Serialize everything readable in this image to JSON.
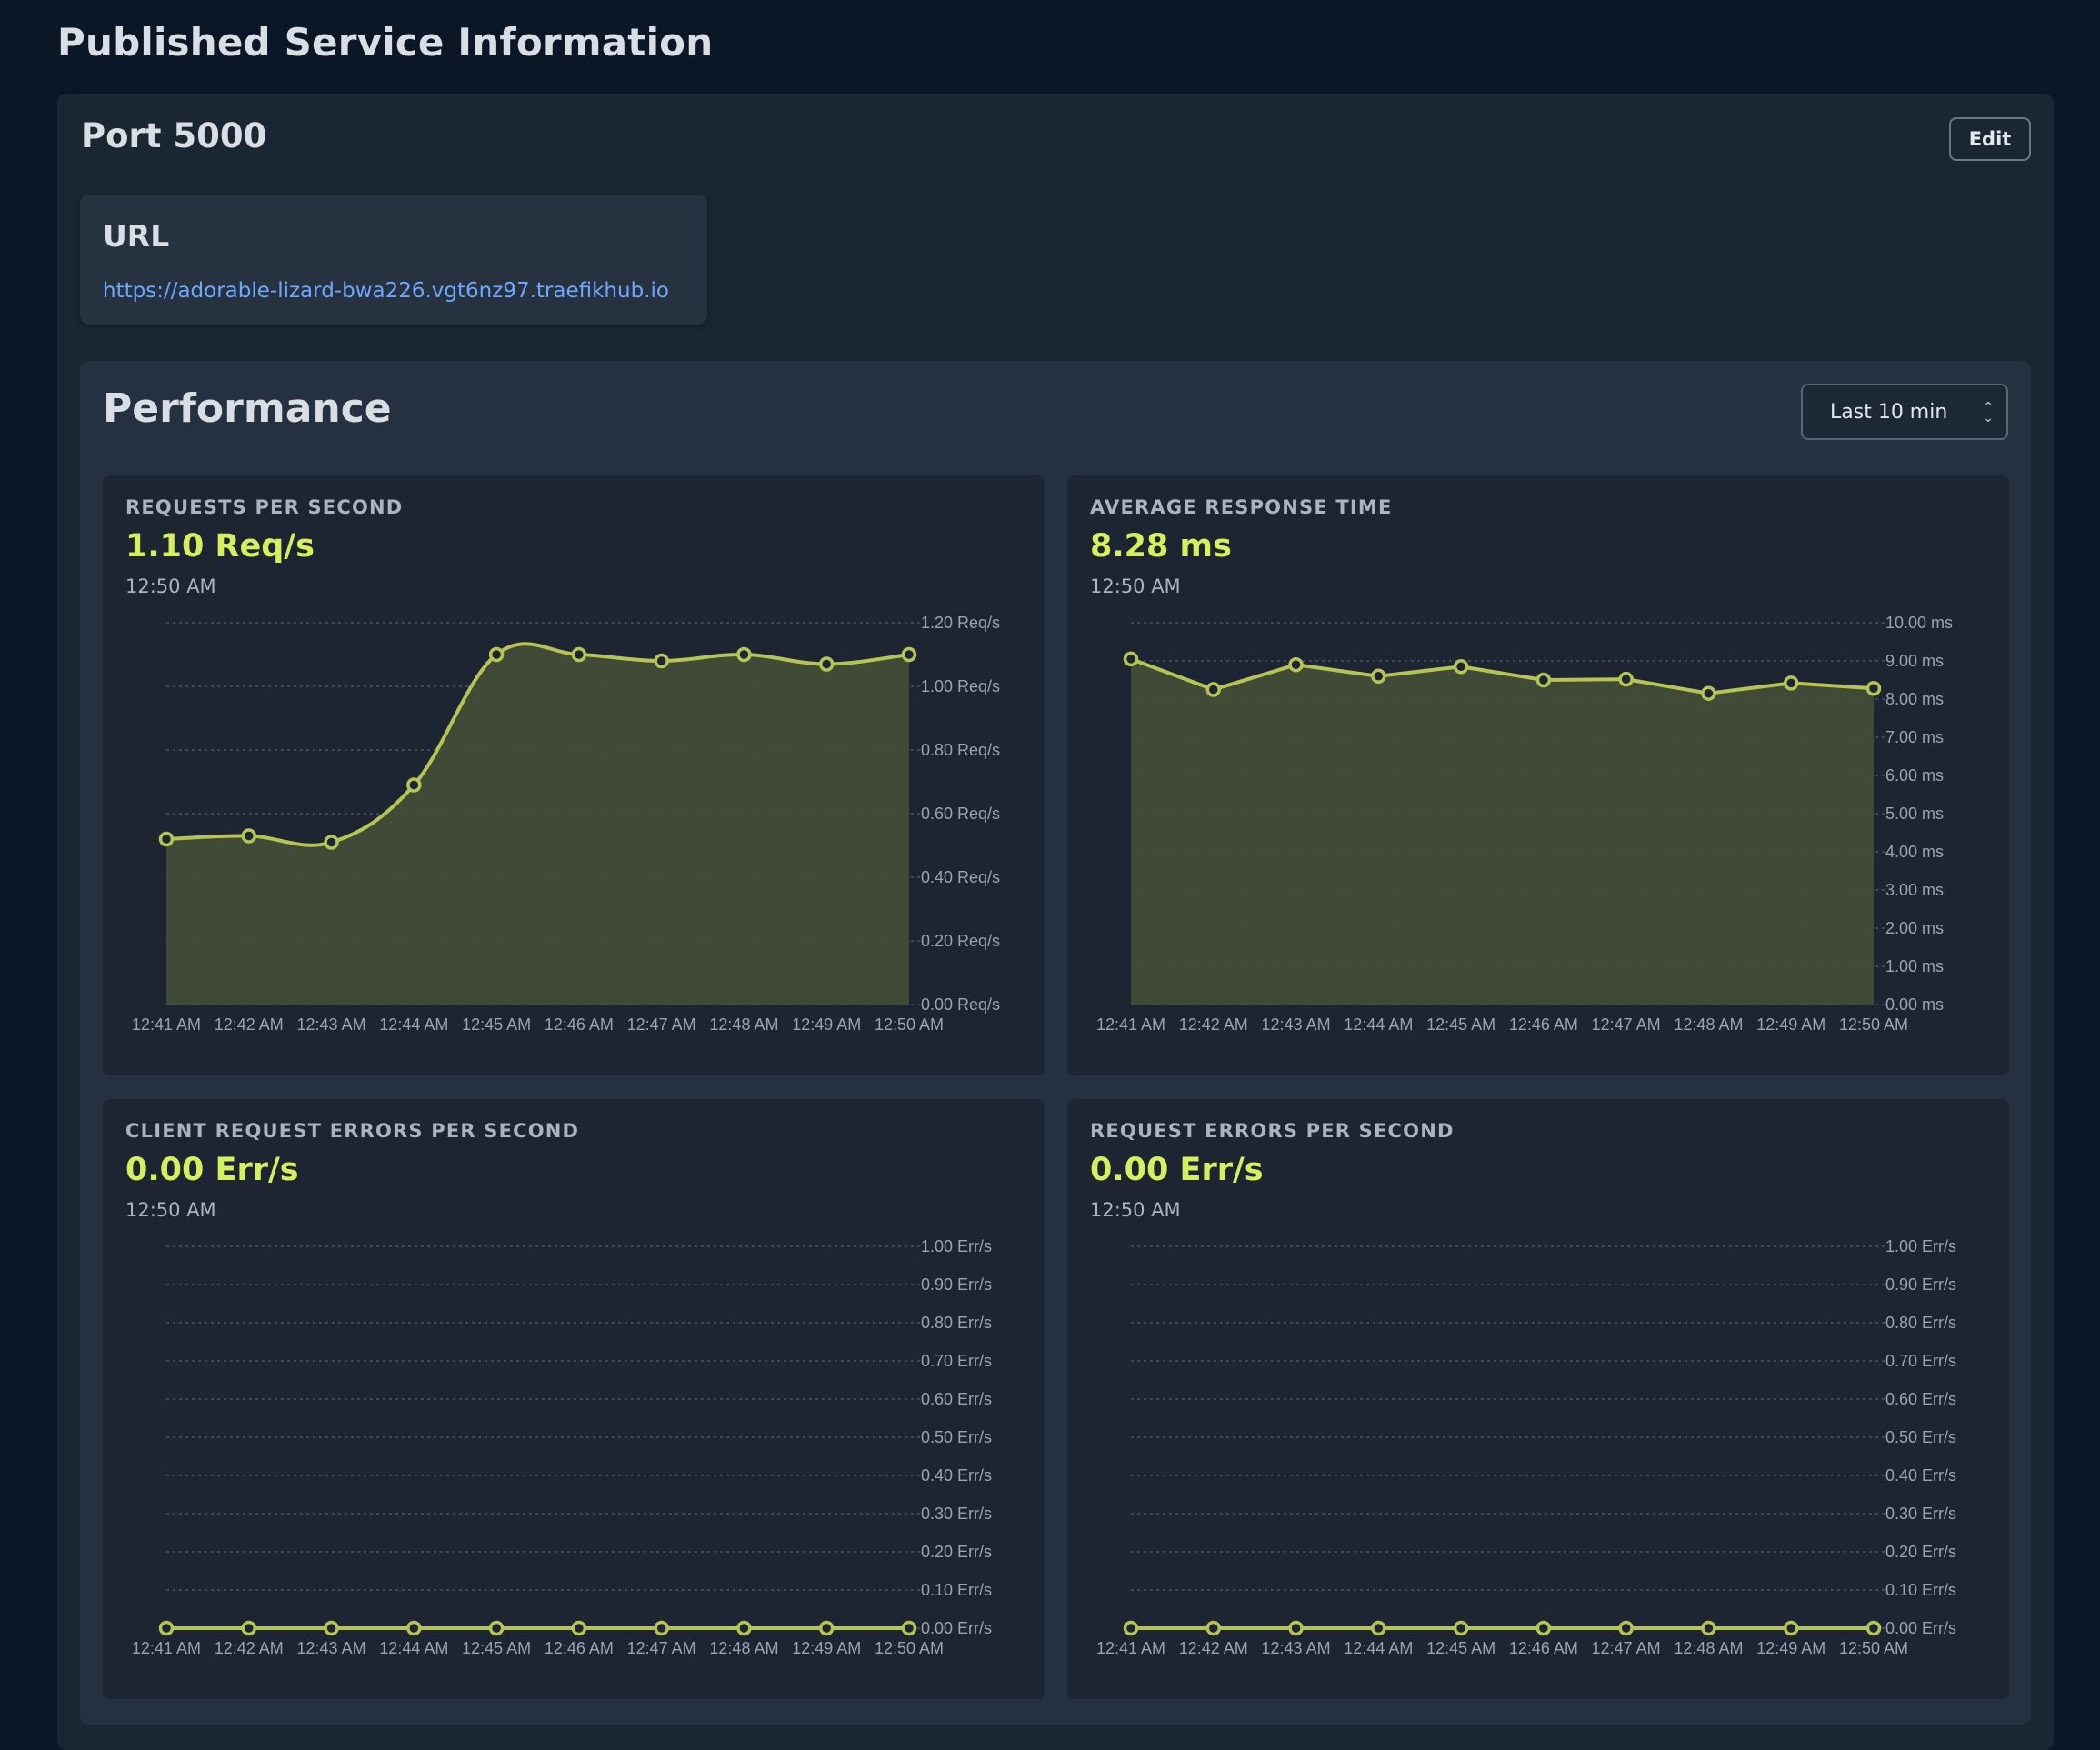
{
  "page_title": "Published Service Information",
  "service": {
    "port_title": "Port 5000",
    "edit_label": "Edit",
    "url_label": "URL",
    "url": "https://adorable-lizard-bwa226.vgt6nz97.traefikhub.io"
  },
  "performance": {
    "title": "Performance",
    "range_value": "Last 10 min",
    "range_caret": "⌃⌄"
  },
  "colors": {
    "accent": "#d6ef5e",
    "line": "#b5c454",
    "area": "#434c38",
    "link": "#6ea8ff"
  },
  "panels": [
    {
      "label": "REQUESTS PER SECOND",
      "value": "1.10 Req/s",
      "time": "12:50 AM"
    },
    {
      "label": "AVERAGE RESPONSE TIME",
      "value": "8.28 ms",
      "time": "12:50 AM"
    },
    {
      "label": "CLIENT REQUEST ERRORS PER SECOND",
      "value": "0.00 Err/s",
      "time": "12:50 AM"
    },
    {
      "label": "REQUEST ERRORS PER SECOND",
      "value": "0.00 Err/s",
      "time": "12:50 AM"
    }
  ],
  "chart_data": [
    {
      "type": "area",
      "smooth": true,
      "categories": [
        "12:41 AM",
        "12:42 AM",
        "12:43 AM",
        "12:44 AM",
        "12:45 AM",
        "12:46 AM",
        "12:47 AM",
        "12:48 AM",
        "12:49 AM",
        "12:50 AM"
      ],
      "values": [
        0.52,
        0.53,
        0.51,
        0.69,
        1.1,
        1.1,
        1.08,
        1.1,
        1.07,
        1.1
      ],
      "ylim": [
        0,
        1.2
      ],
      "yticks": [
        "1.20 Req/s",
        "1.00 Req/s",
        "0.80 Req/s",
        "0.60 Req/s",
        "0.40 Req/s",
        "0.20 Req/s",
        "0.00 Req/s"
      ],
      "grid": true
    },
    {
      "type": "area",
      "smooth": false,
      "categories": [
        "12:41 AM",
        "12:42 AM",
        "12:43 AM",
        "12:44 AM",
        "12:45 AM",
        "12:46 AM",
        "12:47 AM",
        "12:48 AM",
        "12:49 AM",
        "12:50 AM"
      ],
      "values": [
        9.05,
        8.25,
        8.9,
        8.6,
        8.85,
        8.5,
        8.52,
        8.15,
        8.42,
        8.28
      ],
      "ylim": [
        0,
        10
      ],
      "yticks": [
        "10.00 ms",
        "9.00 ms",
        "8.00 ms",
        "7.00 ms",
        "6.00 ms",
        "5.00 ms",
        "4.00 ms",
        "3.00 ms",
        "2.00 ms",
        "1.00 ms",
        "0.00 ms"
      ],
      "grid": true
    },
    {
      "type": "line",
      "smooth": false,
      "categories": [
        "12:41 AM",
        "12:42 AM",
        "12:43 AM",
        "12:44 AM",
        "12:45 AM",
        "12:46 AM",
        "12:47 AM",
        "12:48 AM",
        "12:49 AM",
        "12:50 AM"
      ],
      "values": [
        0,
        0,
        0,
        0,
        0,
        0,
        0,
        0,
        0,
        0
      ],
      "ylim": [
        0,
        1
      ],
      "yticks": [
        "1.00 Err/s",
        "0.90 Err/s",
        "0.80 Err/s",
        "0.70 Err/s",
        "0.60 Err/s",
        "0.50 Err/s",
        "0.40 Err/s",
        "0.30 Err/s",
        "0.20 Err/s",
        "0.10 Err/s",
        "0.00 Err/s"
      ],
      "grid": true
    },
    {
      "type": "line",
      "smooth": false,
      "categories": [
        "12:41 AM",
        "12:42 AM",
        "12:43 AM",
        "12:44 AM",
        "12:45 AM",
        "12:46 AM",
        "12:47 AM",
        "12:48 AM",
        "12:49 AM",
        "12:50 AM"
      ],
      "values": [
        0,
        0,
        0,
        0,
        0,
        0,
        0,
        0,
        0,
        0
      ],
      "ylim": [
        0,
        1
      ],
      "yticks": [
        "1.00 Err/s",
        "0.90 Err/s",
        "0.80 Err/s",
        "0.70 Err/s",
        "0.60 Err/s",
        "0.50 Err/s",
        "0.40 Err/s",
        "0.30 Err/s",
        "0.20 Err/s",
        "0.10 Err/s",
        "0.00 Err/s"
      ],
      "grid": true
    }
  ]
}
